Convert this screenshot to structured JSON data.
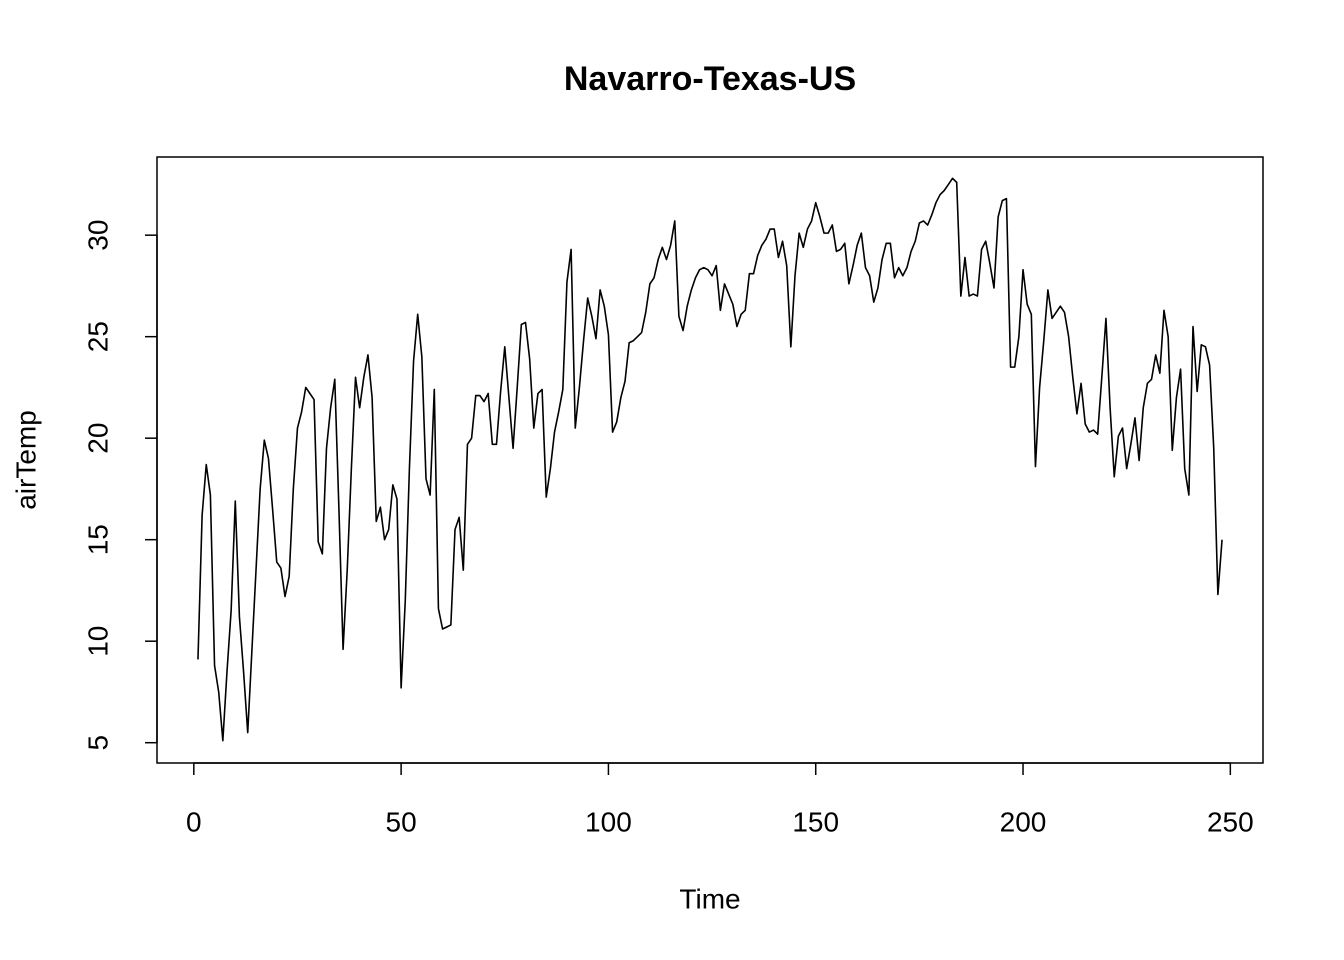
{
  "chart_data": {
    "type": "line",
    "title": "Navarro-Texas-US",
    "x_label": "Time",
    "y_label": "airTemp",
    "color": "#000000",
    "x": [
      1,
      2,
      3,
      4,
      5,
      6,
      7,
      8,
      9,
      10,
      11,
      12,
      13,
      14,
      15,
      16,
      17,
      18,
      19,
      20,
      21,
      22,
      23,
      24,
      25,
      26,
      27,
      28,
      29,
      30,
      31,
      32,
      33,
      34,
      35,
      36,
      37,
      38,
      39,
      40,
      41,
      42,
      43,
      44,
      45,
      46,
      47,
      48,
      49,
      50,
      51,
      52,
      53,
      54,
      55,
      56,
      57,
      58,
      59,
      60,
      61,
      62,
      63,
      64,
      65,
      66,
      67,
      68,
      69,
      70,
      71,
      72,
      73,
      74,
      75,
      76,
      77,
      78,
      79,
      80,
      81,
      82,
      83,
      84,
      85,
      86,
      87,
      88,
      89,
      90,
      91,
      92,
      93,
      94,
      95,
      96,
      97,
      98,
      99,
      100,
      101,
      102,
      103,
      104,
      105,
      106,
      107,
      108,
      109,
      110,
      111,
      112,
      113,
      114,
      115,
      116,
      117,
      118,
      119,
      120,
      121,
      122,
      123,
      124,
      125,
      126,
      127,
      128,
      129,
      130,
      131,
      132,
      133,
      134,
      135,
      136,
      137,
      138,
      139,
      140,
      141,
      142,
      143,
      144,
      145,
      146,
      147,
      148,
      149,
      150,
      151,
      152,
      153,
      154,
      155,
      156,
      157,
      158,
      159,
      160,
      161,
      162,
      163,
      164,
      165,
      166,
      167,
      168,
      169,
      170,
      171,
      172,
      173,
      174,
      175,
      176,
      177,
      178,
      179,
      180,
      181,
      182,
      183,
      184,
      185,
      186,
      187,
      188,
      189,
      190,
      191,
      192,
      193,
      194,
      195,
      196,
      197,
      198,
      199,
      200,
      201,
      202,
      203,
      204,
      205,
      206,
      207,
      208,
      209,
      210,
      211,
      212,
      213,
      214,
      215,
      216,
      217,
      218,
      219,
      220,
      221,
      222,
      223,
      224,
      225,
      226,
      227,
      228,
      229,
      230,
      231,
      232,
      233,
      234,
      235,
      236,
      237,
      238,
      239,
      240,
      241,
      242,
      243,
      244,
      245,
      246,
      247,
      248
    ],
    "values": [
      9.1,
      16.2,
      18.7,
      17.2,
      8.8,
      7.5,
      5.1,
      8.5,
      11.5,
      16.9,
      11.2,
      8.5,
      5.5,
      9.5,
      13.5,
      17.5,
      19.9,
      19.0,
      16.5,
      13.9,
      13.6,
      12.2,
      13.2,
      17.5,
      20.5,
      21.3,
      22.5,
      22.2,
      21.9,
      14.9,
      14.3,
      19.5,
      21.5,
      22.9,
      16.5,
      9.6,
      13.5,
      18.5,
      23.0,
      21.5,
      23.0,
      24.1,
      22.0,
      15.9,
      16.6,
      15.0,
      15.5,
      17.7,
      17.0,
      7.7,
      12.0,
      18.5,
      23.8,
      26.1,
      24.0,
      18.0,
      17.2,
      22.4,
      11.6,
      10.6,
      10.7,
      10.8,
      15.5,
      16.1,
      13.5,
      19.7,
      20.0,
      22.1,
      22.1,
      21.8,
      22.2,
      19.7,
      19.7,
      22.3,
      24.5,
      22.0,
      19.5,
      22.5,
      25.6,
      25.7,
      23.9,
      20.5,
      22.2,
      22.4,
      17.1,
      18.5,
      20.3,
      21.3,
      22.4,
      27.7,
      29.3,
      20.5,
      22.5,
      24.8,
      26.9,
      26.0,
      24.9,
      27.3,
      26.5,
      25.1,
      20.3,
      20.8,
      22.0,
      22.8,
      24.7,
      24.8,
      25.0,
      25.2,
      26.2,
      27.6,
      27.9,
      28.8,
      29.4,
      28.8,
      29.5,
      30.7,
      26.0,
      25.3,
      26.5,
      27.3,
      27.9,
      28.3,
      28.4,
      28.3,
      28.0,
      28.5,
      26.3,
      27.6,
      27.1,
      26.6,
      25.5,
      26.1,
      26.3,
      28.1,
      28.1,
      29.0,
      29.5,
      29.8,
      30.3,
      30.3,
      28.9,
      29.7,
      28.5,
      24.5,
      28.0,
      30.1,
      29.4,
      30.3,
      30.7,
      31.6,
      30.9,
      30.1,
      30.1,
      30.5,
      29.2,
      29.3,
      29.6,
      27.6,
      28.5,
      29.5,
      30.1,
      28.4,
      28.0,
      26.7,
      27.4,
      28.8,
      29.6,
      29.6,
      27.9,
      28.4,
      28.0,
      28.4,
      29.2,
      29.7,
      30.6,
      30.7,
      30.5,
      31.0,
      31.6,
      32.0,
      32.2,
      32.5,
      32.8,
      32.6,
      27.0,
      28.9,
      27.0,
      27.1,
      27.0,
      29.3,
      29.7,
      28.6,
      27.4,
      30.9,
      31.7,
      31.8,
      23.5,
      23.5,
      25.0,
      28.3,
      26.6,
      26.1,
      18.6,
      22.5,
      24.8,
      27.3,
      25.9,
      26.2,
      26.5,
      26.2,
      25.0,
      23.0,
      21.2,
      22.7,
      20.7,
      20.3,
      20.4,
      20.2,
      23.0,
      25.9,
      21.5,
      18.1,
      20.1,
      20.5,
      18.5,
      19.7,
      21.0,
      18.9,
      21.5,
      22.7,
      22.9,
      24.1,
      23.2,
      26.3,
      25.0,
      19.4,
      22.0,
      23.4,
      18.5,
      17.2,
      25.5,
      22.3,
      24.6,
      24.5,
      23.6,
      19.5,
      12.3,
      15.0
    ],
    "xlim": [
      -8.88,
      257.88
    ],
    "ylim": [
      4.0,
      33.85
    ],
    "xticks": [
      0,
      50,
      100,
      150,
      200,
      250
    ],
    "yticks": [
      5,
      10,
      15,
      20,
      25,
      30
    ]
  }
}
